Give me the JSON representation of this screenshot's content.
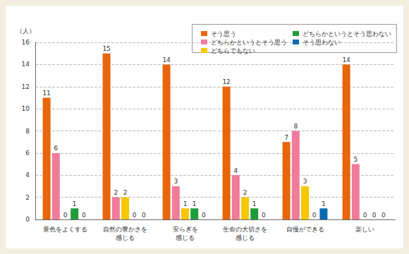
{
  "chart_data": {
    "type": "bar",
    "ylabel": "（人）",
    "categories": [
      "景色をよくする",
      "自然の豊かさを\n感じる",
      "安らぎを\n感じる",
      "生命の大切さを\n感じる",
      "自慢ができる",
      "楽しい"
    ],
    "series": [
      {
        "name": "そう思う",
        "color": "#e8650a",
        "values": [
          11,
          15,
          14,
          12,
          7,
          14
        ]
      },
      {
        "name": "どちらかというとそう思う",
        "color": "#f07b9b",
        "values": [
          6,
          2,
          3,
          4,
          8,
          5
        ]
      },
      {
        "name": "どちらでもない",
        "color": "#f7c700",
        "values": [
          0,
          2,
          1,
          2,
          3,
          0
        ]
      },
      {
        "name": "どちらかというとそう思わない",
        "color": "#1e9b3c",
        "values": [
          1,
          0,
          1,
          1,
          0,
          0
        ]
      },
      {
        "name": "そう思わない",
        "color": "#0b69b0",
        "values": [
          0,
          0,
          0,
          0,
          1,
          0
        ]
      }
    ],
    "ylim": [
      0,
      16
    ],
    "yticks": [
      0,
      2,
      4,
      6,
      8,
      10,
      12,
      14,
      16
    ],
    "grid": true,
    "legend": "top-right",
    "data_labels": true
  }
}
